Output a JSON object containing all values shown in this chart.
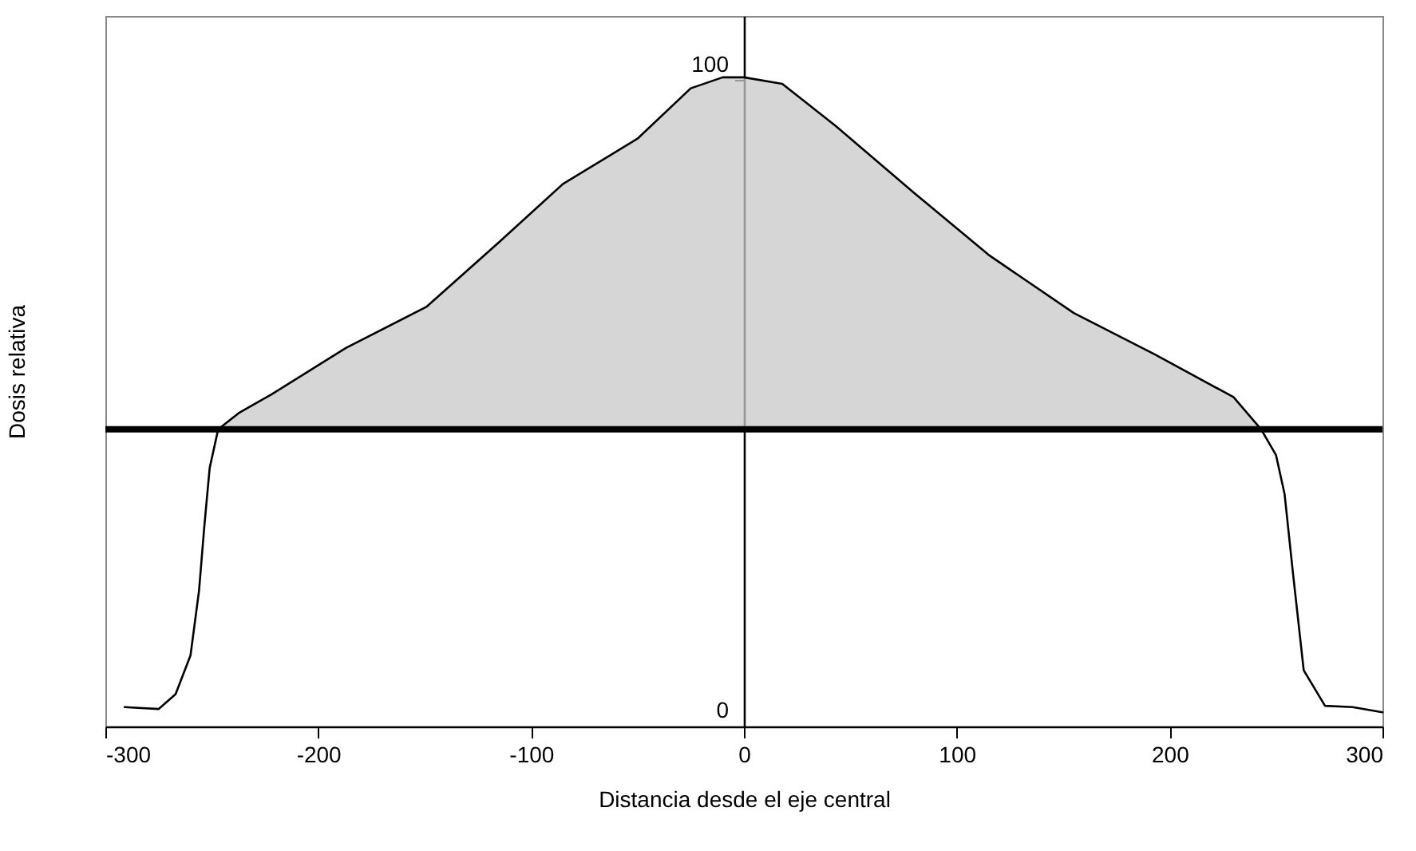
{
  "chart_data": {
    "type": "line",
    "xlabel": "Distancia desde el eje central",
    "ylabel": "Dosis relativa",
    "x": [
      -291,
      -275,
      -267,
      -260,
      -256,
      -253.5,
      -251,
      -247,
      -237,
      -222,
      -187,
      -149,
      -115,
      -85,
      -50,
      -25,
      -10,
      0,
      18,
      43,
      80,
      115,
      155,
      193,
      230,
      243,
      250,
      254,
      258,
      263,
      273,
      286,
      300
    ],
    "series": [
      {
        "color": "#000000",
        "values": [
          3,
          2.7,
          5,
          11,
          21,
          31,
          40,
          46,
          48.6,
          51.4,
          58.6,
          65,
          75,
          84,
          91,
          98.8,
          100.5,
          100.5,
          99.5,
          93,
          82.6,
          73,
          64,
          57.6,
          51,
          46,
          42,
          36,
          23.6,
          8.7,
          3.2,
          3,
          2.2
        ],
        "lower": [
          null,
          null,
          null,
          null,
          null,
          null,
          null,
          46,
          46,
          46,
          46,
          46,
          46,
          46,
          46,
          46,
          46,
          46,
          46,
          46,
          46,
          46,
          46,
          46,
          46,
          46,
          null,
          null,
          null,
          null,
          null,
          null,
          null
        ],
        "upper": [
          null,
          null,
          null,
          null,
          null,
          null,
          null,
          46,
          48.6,
          51.4,
          58.6,
          65,
          75,
          84,
          91,
          98.8,
          100.5,
          100.5,
          99.5,
          93,
          82.6,
          73,
          64,
          57.6,
          51,
          46,
          null,
          null,
          null,
          null,
          null,
          null,
          null
        ]
      }
    ],
    "ref_lines": [
      {
        "axis": "y",
        "value": 46,
        "color": "#000000"
      }
    ],
    "xlim": [
      -300,
      300
    ],
    "ylim": [
      0,
      110
    ],
    "xticks": [
      -300,
      -200,
      -100,
      0,
      100,
      200,
      300
    ],
    "yticks": [
      0,
      100
    ],
    "grid": false,
    "marker": "none",
    "line_style": "solid"
  }
}
